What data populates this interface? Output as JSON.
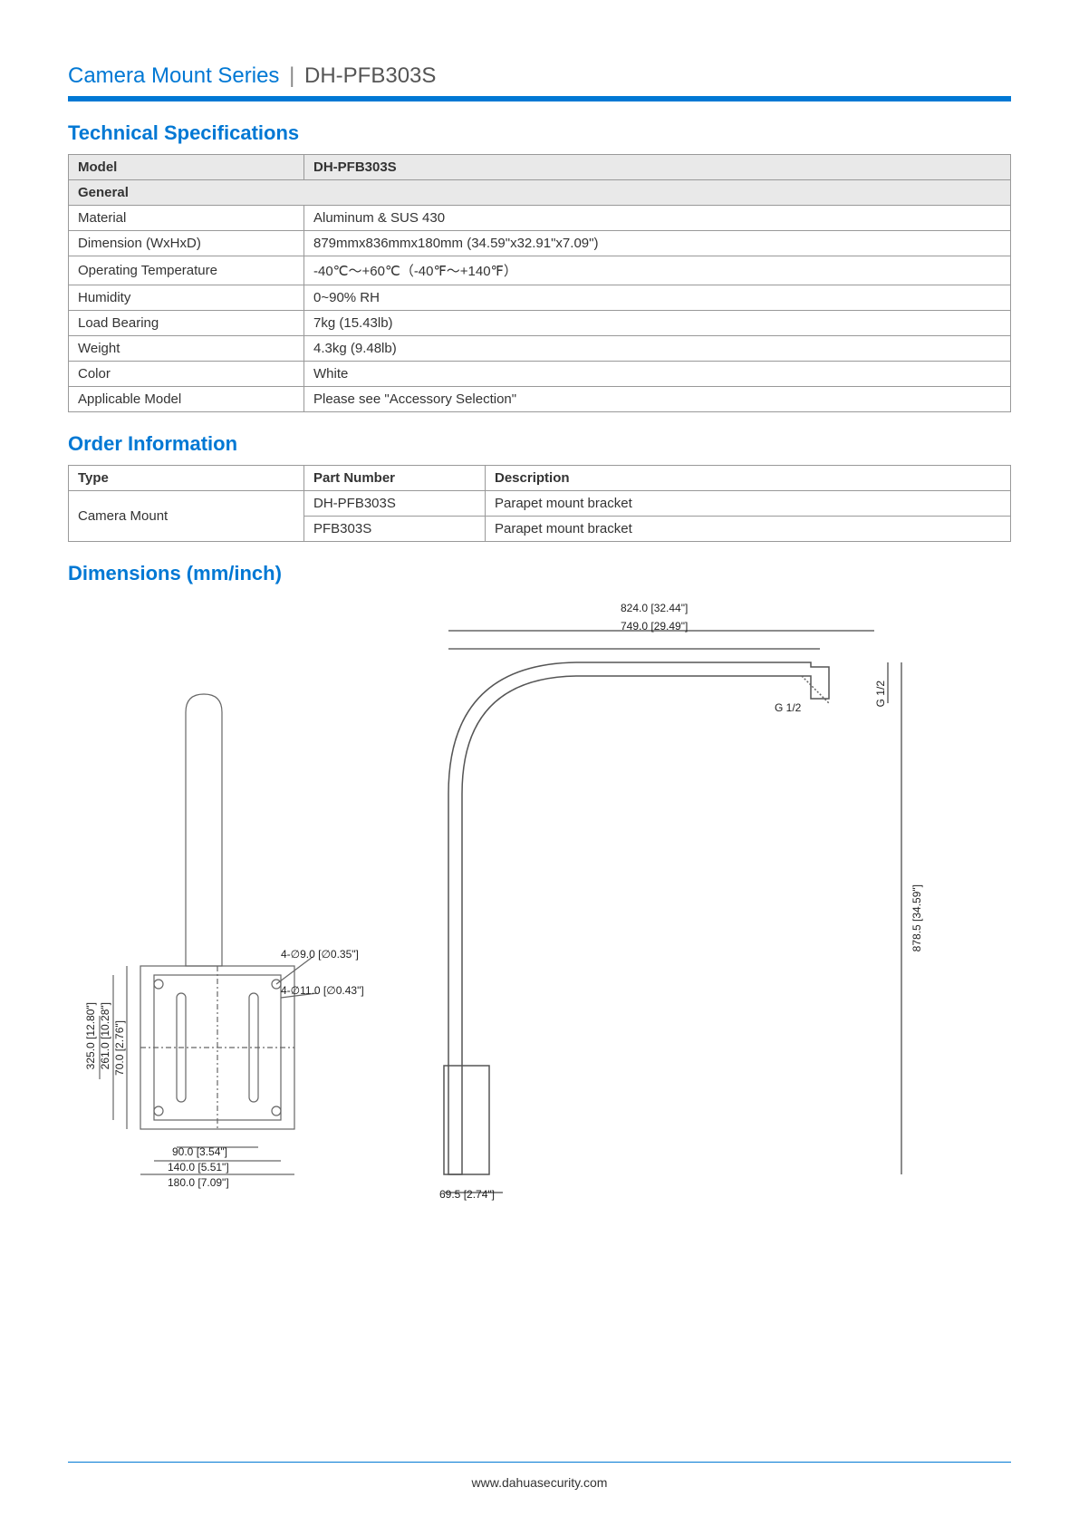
{
  "header": {
    "series": "Camera Mount Series",
    "separator": "|",
    "model": "DH-PFB303S"
  },
  "sections": {
    "tech_spec": "Technical Specifications",
    "order_info": "Order Information",
    "dimensions": "Dimensions (mm/inch)"
  },
  "spec_table": {
    "model_label": "Model",
    "model_value": "DH-PFB303S",
    "general_label": "General",
    "rows": [
      {
        "label": "Material",
        "value": "Aluminum & SUS 430"
      },
      {
        "label": "Dimension (WxHxD)",
        "value": "879mmx836mmx180mm (34.59\"x32.91\"x7.09\")"
      },
      {
        "label": "Operating Temperature",
        "value": "-40℃～+60℃（-40℉～+140℉）"
      },
      {
        "label": "Humidity",
        "value": "0~90% RH"
      },
      {
        "label": "Load Bearing",
        "value": "7kg (15.43lb)"
      },
      {
        "label": "Weight",
        "value": "4.3kg (9.48lb)"
      },
      {
        "label": "Color",
        "value": "White"
      },
      {
        "label": "Applicable Model",
        "value": "Please see \"Accessory Selection\""
      }
    ]
  },
  "order_table": {
    "headers": {
      "type": "Type",
      "part": "Part Number",
      "desc": "Description"
    },
    "type_value": "Camera Mount",
    "rows": [
      {
        "part": "DH-PFB303S",
        "desc": "Parapet mount bracket"
      },
      {
        "part": "PFB303S",
        "desc": "Parapet mount bracket"
      }
    ]
  },
  "diagram": {
    "top1": "824.0 [32.44\"]",
    "top2": "749.0 [29.49\"]",
    "g12_h": "G 1/2",
    "g12_v": "G 1/2",
    "right_h": "878.5 [34.59\"]",
    "left_h1": "325.0 [12.80\"]",
    "left_h2": "261.0 [10.28\"]",
    "left_h3": "70.0 [2.76\"]",
    "hole1": "4-∅9.0 [∅0.35\"]",
    "hole2": "4-∅11.0 [∅0.43\"]",
    "bot1": "90.0 [3.54\"]",
    "bot2": "140.0 [5.51\"]",
    "bot3": "180.0 [7.09\"]",
    "bot4": "69.5 [2.74\"]",
    "colors": {
      "stroke": "#666666",
      "text": "#222222"
    }
  },
  "footer": {
    "url": "www.dahuasecurity.com"
  }
}
